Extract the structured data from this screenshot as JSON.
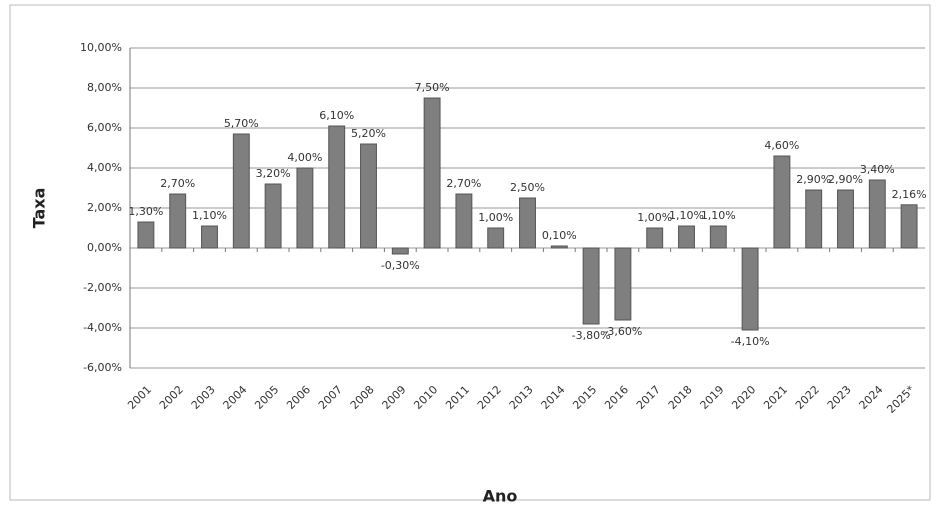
{
  "chart_data": {
    "type": "bar",
    "x_label": "Ano",
    "y_label": "Taxa",
    "categories": [
      "2001",
      "2002",
      "2003",
      "2004",
      "2005",
      "2006",
      "2007",
      "2008",
      "2009",
      "2010",
      "2011",
      "2012",
      "2013",
      "2014",
      "2015",
      "2016",
      "2017",
      "2018",
      "2019",
      "2020",
      "2021",
      "2022",
      "2023",
      "2024",
      "2025*"
    ],
    "values": [
      1.3,
      2.7,
      1.1,
      5.7,
      3.2,
      4.0,
      6.1,
      5.2,
      -0.3,
      7.5,
      2.7,
      1.0,
      2.5,
      0.1,
      -3.8,
      -3.6,
      1.0,
      1.1,
      1.1,
      -4.1,
      4.6,
      2.9,
      2.9,
      3.4,
      2.16
    ],
    "value_labels": [
      "1,30%",
      "2,70%",
      "1,10%",
      "5,70%",
      "3,20%",
      "4,00%",
      "6,10%",
      "5,20%",
      "-0,30%",
      "7,50%",
      "2,70%",
      "1,00%",
      "2,50%",
      "0,10%",
      "-3,80%",
      "-3,60%",
      "1,00%",
      "1,10%",
      "1,10%",
      "-4,10%",
      "4,60%",
      "2,90%",
      "2,90%",
      "3,40%",
      "2,16%"
    ],
    "color": "#7f7f7f",
    "ylim": [
      -6,
      10
    ],
    "yticks": [
      {
        "value": -6,
        "label": "-6,00%"
      },
      {
        "value": -4,
        "label": "-4,00%"
      },
      {
        "value": -2,
        "label": "-2,00%"
      },
      {
        "value": 0,
        "label": "0,00%"
      },
      {
        "value": 2,
        "label": "2,00%"
      },
      {
        "value": 4,
        "label": "4,00%"
      },
      {
        "value": 6,
        "label": "6,00%"
      },
      {
        "value": 8,
        "label": "8,00%"
      },
      {
        "value": 10,
        "label": "10,00%"
      }
    ],
    "grid": true
  }
}
